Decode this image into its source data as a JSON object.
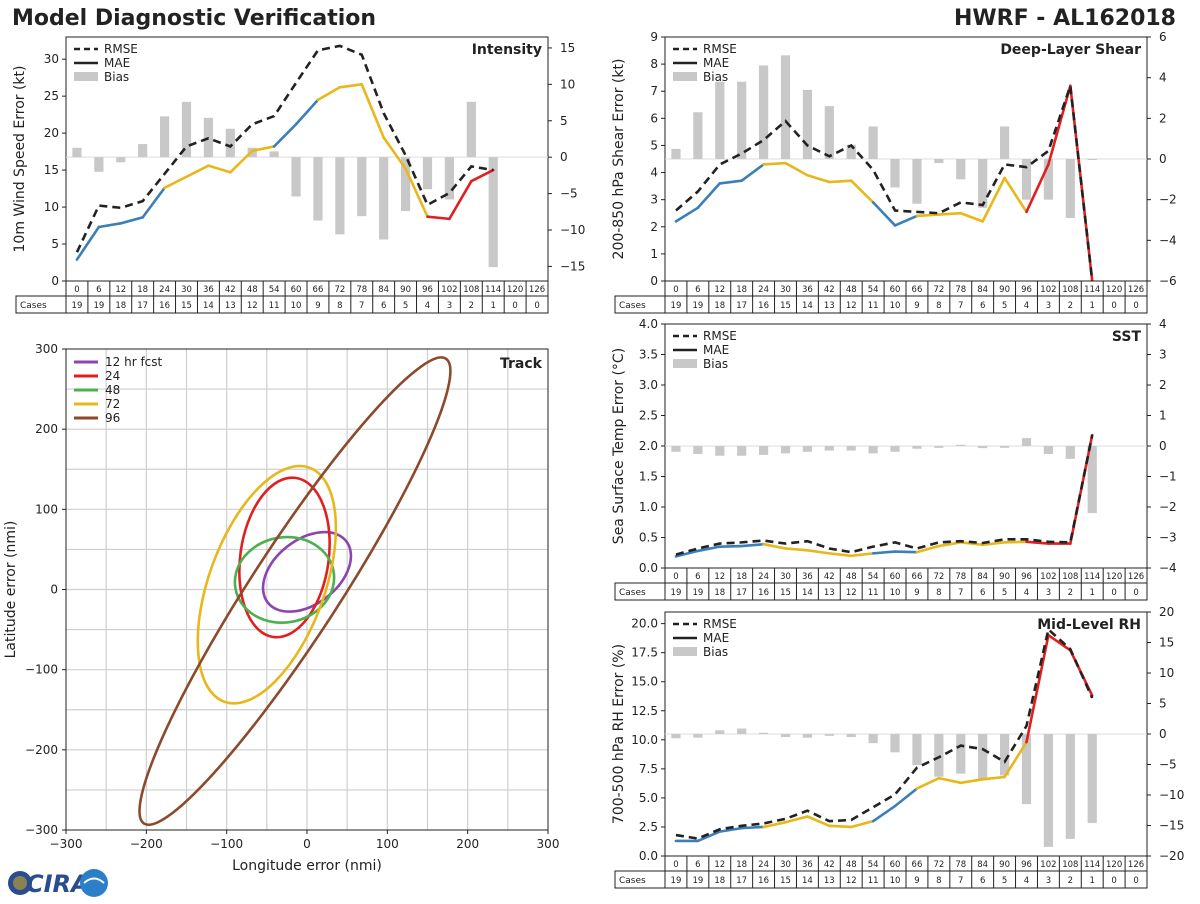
{
  "header": {
    "title_left": "Model Diagnostic Verification",
    "title_right": "HWRF - AL162018"
  },
  "hours": [
    "0",
    "6",
    "12",
    "18",
    "24",
    "30",
    "36",
    "42",
    "48",
    "54",
    "60",
    "66",
    "72",
    "78",
    "84",
    "90",
    "96",
    "102",
    "108",
    "114",
    "120",
    "126"
  ],
  "cases_label": "Cases",
  "cases": [
    "19",
    "19",
    "18",
    "17",
    "16",
    "15",
    "14",
    "13",
    "12",
    "11",
    "10",
    "9",
    "8",
    "7",
    "6",
    "5",
    "4",
    "3",
    "2",
    "1",
    "0",
    "0"
  ],
  "segment_colors": [
    "#3a7fb8",
    "#3a7fb8",
    "#3a7fb8",
    "#3a7fb8",
    "#e8b71a",
    "#e8b71a",
    "#e8b71a",
    "#e8b71a",
    "#e8b71a",
    "#3a7fb8",
    "#3a7fb8",
    "#e8b71a",
    "#e8b71a",
    "#e8b71a",
    "#e8b71a",
    "#e8b71a",
    "#e02020",
    "#e02020",
    "#e02020",
    "#e02020"
  ],
  "legend_labels": [
    "RMSE",
    "MAE",
    "Bias"
  ],
  "chart_data": [
    {
      "name": "intensity",
      "type": "line+bar",
      "title": "Intensity",
      "ylabel": "10m Wind Speed Error (kt)",
      "ylim": [
        0,
        33
      ],
      "yticks": [
        "0",
        "5",
        "10",
        "15",
        "20",
        "25",
        "30"
      ],
      "y2lim": [
        -17,
        16.5
      ],
      "y2ticks": [
        "−15",
        "−10",
        "−5",
        "0",
        "5",
        "10",
        "15"
      ],
      "rmse": [
        3.9,
        10.2,
        9.9,
        10.8,
        14.5,
        18.2,
        19.3,
        18.2,
        21.2,
        22.3,
        26.8,
        31.2,
        31.8,
        30.6,
        22.7,
        17.0,
        10.3,
        11.9,
        15.5,
        15.0,
        null,
        null
      ],
      "mae": [
        2.9,
        7.3,
        7.8,
        8.6,
        12.6,
        14.1,
        15.6,
        14.7,
        17.6,
        18.2,
        21.2,
        24.5,
        26.2,
        26.6,
        19.4,
        15.2,
        8.7,
        8.4,
        13.5,
        15.0,
        null,
        null
      ],
      "bias": [
        1.3,
        -2.0,
        -0.7,
        1.8,
        5.6,
        7.6,
        5.4,
        3.9,
        1.3,
        0.8,
        -5.4,
        -8.7,
        -10.6,
        -8.1,
        -11.3,
        -7.4,
        -4.4,
        -5.8,
        7.6,
        -15.1,
        null,
        null
      ]
    },
    {
      "name": "shear",
      "type": "line+bar",
      "title": "Deep-Layer Shear",
      "ylabel": "200-850 hPa Shear Error (kt)",
      "ylim": [
        0,
        9
      ],
      "yticks": [
        "0",
        "1",
        "2",
        "3",
        "4",
        "5",
        "6",
        "7",
        "8",
        "9"
      ],
      "y2lim": [
        -6,
        6
      ],
      "y2ticks": [
        "−6",
        "−4",
        "−2",
        "0",
        "2",
        "4",
        "6"
      ],
      "rmse": [
        2.6,
        3.3,
        4.3,
        4.7,
        5.2,
        5.9,
        5.0,
        4.6,
        5.0,
        4.1,
        2.6,
        2.55,
        2.5,
        2.9,
        2.8,
        4.3,
        4.2,
        4.8,
        7.2,
        0,
        null,
        null
      ],
      "mae": [
        2.2,
        2.7,
        3.6,
        3.7,
        4.3,
        4.35,
        3.9,
        3.65,
        3.7,
        2.9,
        2.05,
        2.4,
        2.45,
        2.5,
        2.2,
        3.8,
        2.55,
        4.3,
        7.2,
        0,
        null,
        null
      ],
      "bias": [
        0.5,
        2.3,
        3.8,
        3.8,
        4.6,
        5.1,
        3.4,
        2.6,
        0.7,
        1.6,
        -1.4,
        -2.2,
        -0.2,
        -1.0,
        -2.4,
        1.6,
        -2.0,
        -2.0,
        -2.9,
        -0.05,
        null,
        null
      ]
    },
    {
      "name": "sst",
      "type": "line+bar",
      "title": "SST",
      "ylabel": "Sea Surface Temp Error (°C)",
      "ylim": [
        0,
        4
      ],
      "yticks": [
        "0.0",
        "0.5",
        "1.0",
        "1.5",
        "2.0",
        "2.5",
        "3.0",
        "3.5",
        "4.0"
      ],
      "y2lim": [
        -4,
        4
      ],
      "y2ticks": [
        "−4",
        "−3",
        "−2",
        "−1",
        "0",
        "1",
        "2",
        "3",
        "4"
      ],
      "rmse": [
        0.22,
        0.32,
        0.4,
        0.42,
        0.45,
        0.4,
        0.44,
        0.32,
        0.26,
        0.35,
        0.42,
        0.32,
        0.42,
        0.44,
        0.41,
        0.47,
        0.47,
        0.43,
        0.42,
        2.18,
        null,
        null
      ],
      "mae": [
        0.19,
        0.28,
        0.35,
        0.36,
        0.39,
        0.32,
        0.29,
        0.24,
        0.2,
        0.24,
        0.27,
        0.26,
        0.36,
        0.42,
        0.38,
        0.42,
        0.43,
        0.4,
        0.4,
        2.18,
        null,
        null
      ],
      "bias": [
        -0.19,
        -0.26,
        -0.32,
        -0.32,
        -0.29,
        -0.24,
        -0.19,
        -0.15,
        -0.15,
        -0.24,
        -0.19,
        -0.09,
        -0.06,
        0.04,
        -0.07,
        -0.06,
        0.26,
        -0.26,
        -0.42,
        -2.2,
        null,
        null
      ]
    },
    {
      "name": "rh",
      "type": "line+bar",
      "title": "Mid-Level RH",
      "ylabel": "700-500 hPa RH Error (%)",
      "ylim": [
        0,
        21
      ],
      "yticks": [
        "0.0",
        "2.5",
        "5.0",
        "7.5",
        "10.0",
        "12.5",
        "15.0",
        "17.5",
        "20.0"
      ],
      "y2lim": [
        -20,
        20
      ],
      "y2ticks": [
        "−20",
        "−15",
        "−10",
        "−5",
        "0",
        "5",
        "10",
        "15",
        "20"
      ],
      "rmse": [
        1.8,
        1.5,
        2.3,
        2.6,
        2.8,
        3.2,
        3.9,
        3.0,
        3.1,
        4.2,
        5.3,
        7.6,
        8.5,
        9.5,
        9.2,
        8.1,
        11.2,
        19.5,
        17.8,
        13.6,
        null,
        null
      ],
      "mae": [
        1.3,
        1.3,
        2.1,
        2.4,
        2.5,
        2.9,
        3.4,
        2.6,
        2.5,
        3.0,
        4.3,
        5.8,
        6.7,
        6.3,
        6.6,
        6.8,
        9.8,
        19.0,
        17.7,
        13.8,
        null,
        null
      ],
      "bias": [
        -0.7,
        -0.6,
        0.6,
        0.9,
        0.2,
        -0.5,
        -0.6,
        -0.3,
        -0.5,
        -1.5,
        -3.0,
        -5.1,
        -7.0,
        -6.5,
        -7.6,
        -6.8,
        -11.5,
        -18.5,
        -17.2,
        -14.6,
        null,
        null
      ]
    },
    {
      "name": "track",
      "type": "ellipse",
      "title": "Track",
      "xlabel": "Longitude error (nmi)",
      "ylabel": "Latitude error (nmi)",
      "xlim": [
        -300,
        300
      ],
      "ylim": [
        -300,
        300
      ],
      "ticks": [
        "−300",
        "−200",
        "−100",
        "0",
        "100",
        "200",
        "300"
      ],
      "ellipses": [
        {
          "label": "12 hr fcst",
          "color": "#8e44ad",
          "cx": 0,
          "cy": 22,
          "a": 62,
          "b": 40,
          "angle": 38
        },
        {
          "label": "24",
          "color": "#e02020",
          "cx": -28,
          "cy": 40,
          "a": 100,
          "b": 55,
          "angle": 82
        },
        {
          "label": "48",
          "color": "#4caf50",
          "cx": -28,
          "cy": 12,
          "a": 62,
          "b": 53,
          "angle": 10
        },
        {
          "label": "72",
          "color": "#e8b71a",
          "cx": -50,
          "cy": 6,
          "a": 155,
          "b": 72,
          "angle": 70
        },
        {
          "label": "96",
          "color": "#8b4a2b",
          "cx": -15,
          "cy": -2,
          "a": 345,
          "b": 55,
          "angle": 57
        }
      ]
    }
  ],
  "logo": {
    "text": "CIRA"
  }
}
